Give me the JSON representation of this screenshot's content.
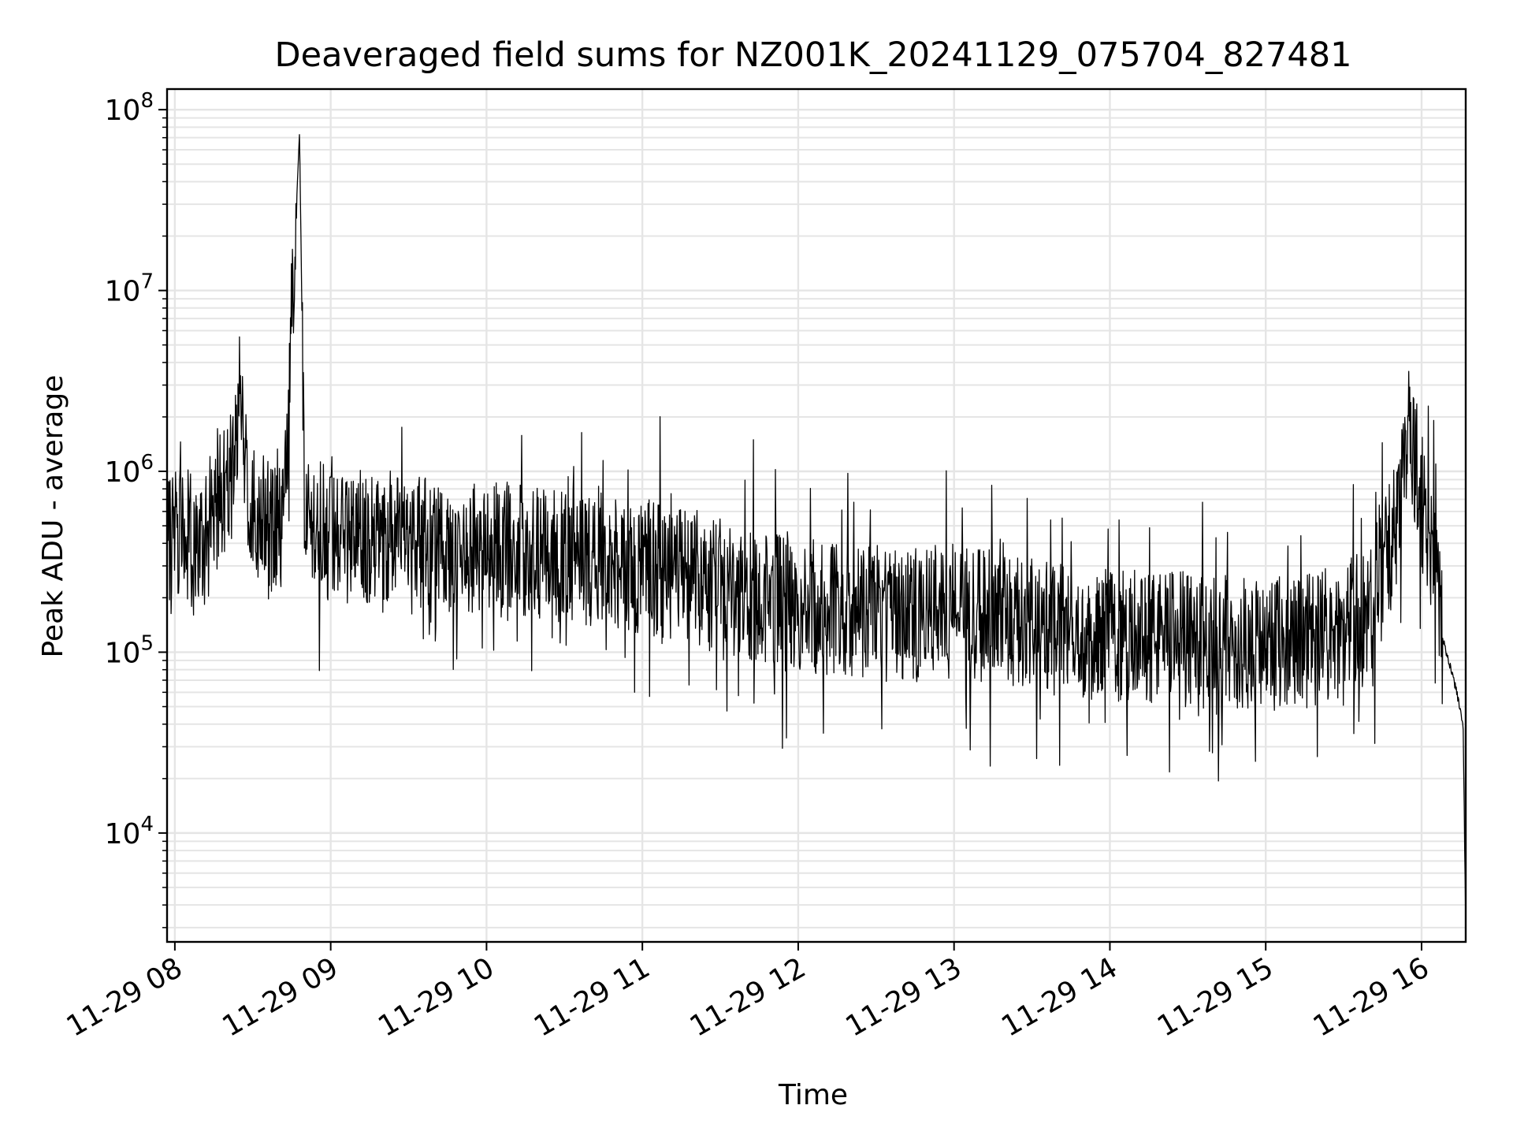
{
  "chart_data": {
    "type": "line",
    "title": "Deaveraged field sums for NZ001K_20241129_075704_827481",
    "xlabel": "Time",
    "ylabel": "Peak ADU - average",
    "yscale": "log",
    "ylim": [
      2500,
      130000000
    ],
    "xlim": [
      "2024-11-29 07:57",
      "2024-11-29 16:17"
    ],
    "x_ticks": [
      "11-29 08",
      "11-29 09",
      "11-29 10",
      "11-29 11",
      "11-29 12",
      "11-29 13",
      "11-29 14",
      "11-29 15",
      "11-29 16"
    ],
    "y_ticks": [
      {
        "value": 10000,
        "base": "10",
        "exp": "4"
      },
      {
        "value": 100000,
        "base": "10",
        "exp": "5"
      },
      {
        "value": 1000000,
        "base": "10",
        "exp": "6"
      },
      {
        "value": 10000000,
        "base": "10",
        "exp": "7"
      },
      {
        "value": 100000000,
        "base": "10",
        "exp": "8"
      }
    ],
    "grid": "major and minor",
    "line_color": "#000000",
    "grid_color": "#e5e5e5",
    "series": [
      {
        "x": [
          "2024-11-29 07:57",
          "2024-11-29 08:05",
          "2024-11-29 08:10",
          "2024-11-29 08:15",
          "2024-11-29 08:18",
          "2024-11-29 08:22",
          "2024-11-29 08:25",
          "2024-11-29 08:28",
          "2024-11-29 08:32",
          "2024-11-29 08:37",
          "2024-11-29 08:42",
          "2024-11-29 08:48",
          "2024-11-29 08:50",
          "2024-11-29 08:55",
          "2024-11-29 09:00",
          "2024-11-29 09:20",
          "2024-11-29 09:40",
          "2024-11-29 10:00",
          "2024-11-29 10:20",
          "2024-11-29 10:40",
          "2024-11-29 11:00",
          "2024-11-29 11:20",
          "2024-11-29 11:40",
          "2024-11-29 12:00",
          "2024-11-29 12:20",
          "2024-11-29 12:40",
          "2024-11-29 13:00",
          "2024-11-29 13:20",
          "2024-11-29 13:40",
          "2024-11-29 14:00",
          "2024-11-29 14:20",
          "2024-11-29 14:40",
          "2024-11-29 15:00",
          "2024-11-29 15:20",
          "2024-11-29 15:40",
          "2024-11-29 15:50",
          "2024-11-29 15:55",
          "2024-11-29 16:00",
          "2024-11-29 16:05",
          "2024-11-29 16:08",
          "2024-11-29 16:13",
          "2024-11-29 16:16",
          "2024-11-29 16:17"
        ],
        "y": [
          400000,
          450000,
          350000,
          600000,
          800000,
          900000,
          2800000,
          700000,
          600000,
          500000,
          650000,
          75000000,
          550000,
          500000,
          420000,
          450000,
          400000,
          380000,
          360000,
          330000,
          300000,
          260000,
          200000,
          180000,
          170000,
          160000,
          170000,
          150000,
          130000,
          125000,
          120000,
          115000,
          110000,
          115000,
          160000,
          500000,
          1900000,
          700000,
          300000,
          120000,
          65000,
          40000,
          3000
        ]
      }
    ]
  }
}
